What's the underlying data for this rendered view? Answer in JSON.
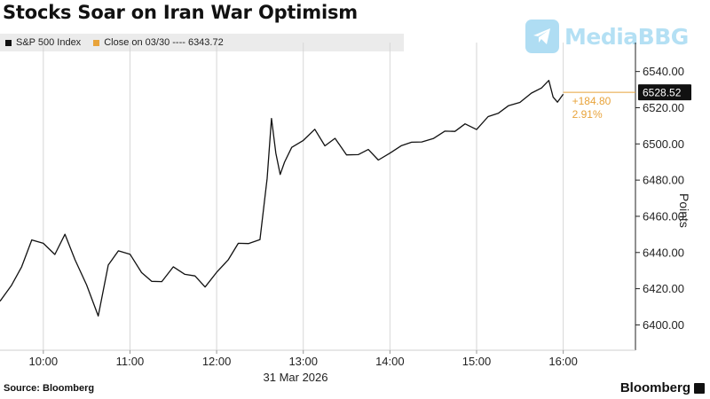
{
  "title": "Stocks Soar on Iran War Optimism",
  "legend": {
    "series_label": "S&P 500 Index",
    "reference_label": "Close on 03/30 ---- 6343.72",
    "series_color": "#111111",
    "reference_color": "#e8a33a"
  },
  "watermark": {
    "icon": "telegram-paper-plane-icon",
    "text": "MediaBBG"
  },
  "footer": {
    "source": "Source: Bloomberg",
    "brand": "Bloomberg"
  },
  "chart_data": {
    "type": "line",
    "title": "Stocks Soar on Iran War Optimism",
    "xlabel": "31 Mar 2026",
    "ylabel": "Points",
    "x_ticks": [
      "10:00",
      "11:00",
      "12:00",
      "13:00",
      "14:00",
      "15:00",
      "16:00"
    ],
    "y_ticks": [
      "6400.00",
      "6420.00",
      "6440.00",
      "6460.00",
      "6480.00",
      "6500.00",
      "6520.00",
      "6540.00"
    ],
    "xlim": [
      "09:30",
      "16:50"
    ],
    "ylim": [
      6386,
      6556
    ],
    "grid": "vertical",
    "series": [
      {
        "name": "S&P 500 Index",
        "color": "#111111",
        "x": [
          "09:30",
          "09:38",
          "09:45",
          "09:52",
          "10:00",
          "10:08",
          "10:15",
          "10:22",
          "10:30",
          "10:38",
          "10:45",
          "10:52",
          "11:00",
          "11:08",
          "11:15",
          "11:22",
          "11:30",
          "11:38",
          "11:45",
          "11:52",
          "12:00",
          "12:08",
          "12:15",
          "12:22",
          "12:30",
          "12:35",
          "12:38",
          "12:41",
          "12:44",
          "12:47",
          "12:52",
          "13:00",
          "13:08",
          "13:15",
          "13:22",
          "13:30",
          "13:38",
          "13:45",
          "13:52",
          "14:00",
          "14:08",
          "14:15",
          "14:22",
          "14:30",
          "14:38",
          "14:45",
          "14:52",
          "15:00",
          "15:08",
          "15:15",
          "15:22",
          "15:30",
          "15:38",
          "15:45",
          "15:50",
          "15:53",
          "15:56",
          "16:00"
        ],
        "values": [
          6412,
          6423,
          6431,
          6448,
          6444,
          6440,
          6449,
          6437,
          6421,
          6406,
          6432,
          6442,
          6438,
          6430,
          6423,
          6425,
          6431,
          6429,
          6426,
          6422,
          6428,
          6437,
          6444,
          6446,
          6446,
          6482,
          6513,
          6496,
          6482,
          6491,
          6497,
          6503,
          6507,
          6500,
          6502,
          6495,
          6493,
          6498,
          6490,
          6496,
          6498,
          6502,
          6500,
          6504,
          6506,
          6508,
          6510,
          6509,
          6514,
          6518,
          6520,
          6524,
          6527,
          6532,
          6534,
          6527,
          6522,
          6528.52
        ]
      }
    ],
    "reference_line": {
      "label": "Close on 03/30",
      "value": 6343.72
    },
    "last_value": "6528.52",
    "annotations": {
      "change": "+184.80",
      "change_pct": "2.91%"
    }
  }
}
